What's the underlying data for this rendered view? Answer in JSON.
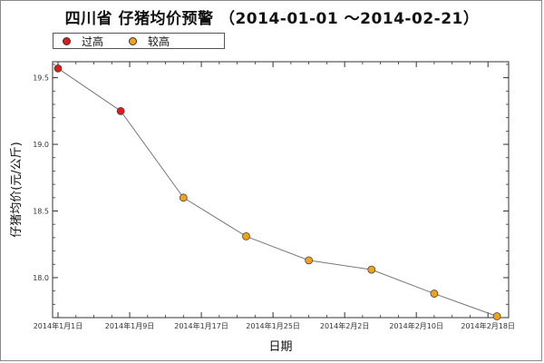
{
  "chart_data": {
    "type": "line",
    "title": "四川省 仔猪均价预警 （2014-01-01 ～2014-02-21）",
    "xlabel": "日期",
    "ylabel": "仔猪均价(元/公斤)",
    "x_tick_labels": [
      "2014年1月1日",
      "2014年1月9日",
      "2014年1月17日",
      "2014年1月25日",
      "2014年2月2日",
      "2014年2月10日",
      "2014年2月18日"
    ],
    "y_tick_labels": [
      "19.5",
      "19.0",
      "18.5",
      "18.0"
    ],
    "ylim": [
      17.7,
      19.62
    ],
    "grid": false,
    "legend_position": "top-left",
    "legend": [
      {
        "name": "过高",
        "color": "#dd1b1b"
      },
      {
        "name": "较高",
        "color": "#f0a218"
      }
    ],
    "line_color": "#777777",
    "points": [
      {
        "date": "2014-01-01",
        "value": 19.57,
        "level": "过高"
      },
      {
        "date": "2014-01-08",
        "value": 19.25,
        "level": "过高"
      },
      {
        "date": "2014-01-15",
        "value": 18.6,
        "level": "较高"
      },
      {
        "date": "2014-01-22",
        "value": 18.31,
        "level": "较高"
      },
      {
        "date": "2014-01-29",
        "value": 18.13,
        "level": "较高"
      },
      {
        "date": "2014-02-05",
        "value": 18.06,
        "level": "较高"
      },
      {
        "date": "2014-02-12",
        "value": 17.88,
        "level": "较高"
      },
      {
        "date": "2014-02-19",
        "value": 17.71,
        "level": "较高"
      }
    ]
  }
}
